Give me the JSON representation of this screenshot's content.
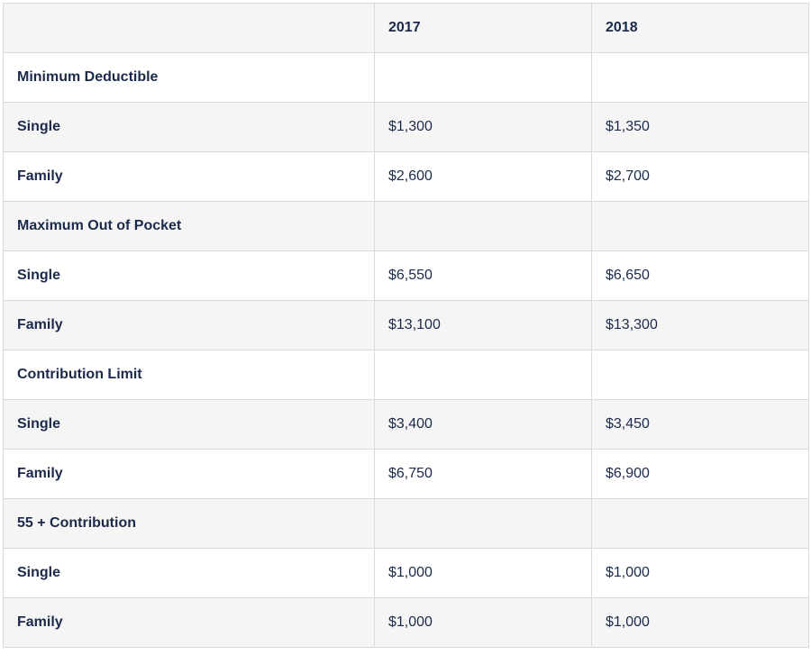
{
  "table": {
    "headers": [
      "",
      "2017",
      "2018"
    ],
    "rows": [
      {
        "label": "Minimum Deductible",
        "v2017": "",
        "v2018": ""
      },
      {
        "label": "Single",
        "v2017": "$1,300",
        "v2018": "$1,350"
      },
      {
        "label": "Family",
        "v2017": "$2,600",
        "v2018": "$2,700"
      },
      {
        "label": "Maximum Out of Pocket",
        "v2017": "",
        "v2018": ""
      },
      {
        "label": "Single",
        "v2017": "$6,550",
        "v2018": "$6,650"
      },
      {
        "label": "Family",
        "v2017": "$13,100",
        "v2018": "$13,300"
      },
      {
        "label": "Contribution Limit",
        "v2017": "",
        "v2018": ""
      },
      {
        "label": "Single",
        "v2017": "$3,400",
        "v2018": "$3,450"
      },
      {
        "label": "Family",
        "v2017": "$6,750",
        "v2018": "$6,900"
      },
      {
        "label": "55 + Contribution",
        "v2017": "",
        "v2018": ""
      },
      {
        "label": "Single",
        "v2017": "$1,000",
        "v2018": "$1,000"
      },
      {
        "label": "Family",
        "v2017": "$1,000",
        "v2018": "$1,000"
      }
    ]
  },
  "colors": {
    "text": "#1b2a4a",
    "shaded_row": "#f5f5f5",
    "border": "#d9d9d9"
  }
}
